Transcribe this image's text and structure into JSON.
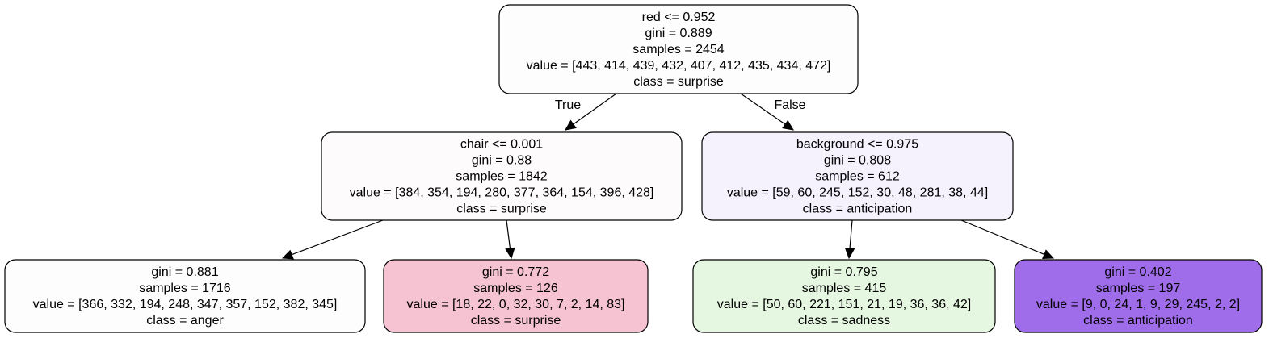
{
  "tree": {
    "nodes": [
      {
        "id": "root",
        "lines": [
          "red <= 0.952",
          "gini = 0.889",
          "samples = 2454",
          "value = [443, 414, 439, 432, 407, 412, 435, 434, 472]",
          "class = surprise"
        ],
        "fill": "#fdfdfd"
      },
      {
        "id": "left",
        "lines": [
          "chair <= 0.001",
          "gini = 0.88",
          "samples = 1842",
          "value = [384, 354, 194, 280, 377, 364, 154, 396, 428]",
          "class = surprise"
        ],
        "fill": "#fdfbfc"
      },
      {
        "id": "right",
        "lines": [
          "background <= 0.975",
          "gini = 0.808",
          "samples = 612",
          "value = [59, 60, 245, 152, 30, 48, 281, 38, 44]",
          "class = anticipation"
        ],
        "fill": "#f5f2fe"
      },
      {
        "id": "left-left",
        "lines": [
          "gini = 0.881",
          "samples = 1716",
          "value = [366, 332, 194, 248, 347, 357, 152, 382, 345]",
          "class = anger"
        ],
        "fill": "#fdfdfd"
      },
      {
        "id": "left-right",
        "lines": [
          "gini = 0.772",
          "samples = 126",
          "value = [18, 22, 0, 32, 30, 7, 2, 14, 83]",
          "class = surprise"
        ],
        "fill": "#f6c3d2"
      },
      {
        "id": "right-left",
        "lines": [
          "gini = 0.795",
          "samples = 415",
          "value = [50, 60, 221, 151, 21, 19, 36, 36, 42]",
          "class = sadness"
        ],
        "fill": "#e6f7e1"
      },
      {
        "id": "right-right",
        "lines": [
          "gini = 0.402",
          "samples = 197",
          "value = [9, 0, 24, 1, 9, 29, 245, 2, 2]",
          "class = anticipation"
        ],
        "fill": "#a06dea"
      }
    ],
    "edges": [
      {
        "from": "root",
        "to": "left",
        "label": "True"
      },
      {
        "from": "root",
        "to": "right",
        "label": "False"
      },
      {
        "from": "left",
        "to": "left-left",
        "label": ""
      },
      {
        "from": "left",
        "to": "left-right",
        "label": ""
      },
      {
        "from": "right",
        "to": "right-left",
        "label": ""
      },
      {
        "from": "right",
        "to": "right-right",
        "label": ""
      }
    ]
  }
}
